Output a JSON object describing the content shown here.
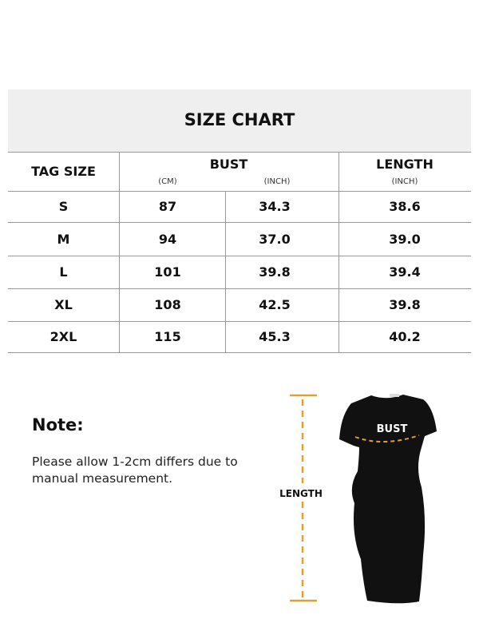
{
  "title": "SIZE CHART",
  "headers": {
    "tag_size": "TAG SIZE",
    "bust": "BUST",
    "bust_cm": "(CM)",
    "bust_inch": "(INCH)",
    "length": "LENGTH",
    "length_inch": "(INCH)"
  },
  "rows": [
    {
      "size": "S",
      "bust_cm": "87",
      "bust_inch": "34.3",
      "length_inch": "38.6"
    },
    {
      "size": "M",
      "bust_cm": "94",
      "bust_inch": "37.0",
      "length_inch": "39.0"
    },
    {
      "size": "L",
      "bust_cm": "101",
      "bust_inch": "39.8",
      "length_inch": "39.4"
    },
    {
      "size": "XL",
      "bust_cm": "108",
      "bust_inch": "42.5",
      "length_inch": "39.8"
    },
    {
      "size": "2XL",
      "bust_cm": "115",
      "bust_inch": "45.3",
      "length_inch": "40.2"
    }
  ],
  "note": {
    "title": "Note:",
    "text": "Please allow 1-2cm differs due to manual measurement."
  },
  "figure": {
    "bust_label": "BUST",
    "length_label": "LENGTH",
    "measure_color": "#e0a030",
    "dress_color": "#111111"
  }
}
